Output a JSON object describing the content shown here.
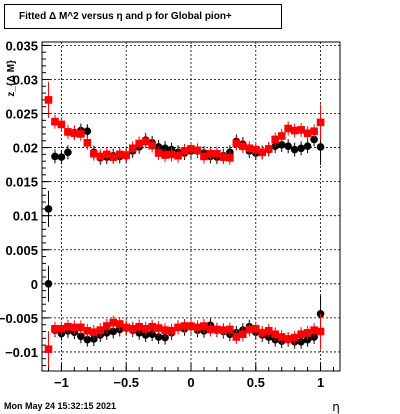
{
  "title": "Fitted Δ M^2 versus η and p for Global pion+",
  "timestamp": "Mon May 24 15:32:15 2021",
  "chart_data": {
    "type": "scatter",
    "title": "Fitted Δ M^2 versus η and p for Global pion+",
    "xlabel": "η",
    "ylabel": "z_{Δ M}",
    "xlim": [
      -1.15,
      1.15
    ],
    "ylim": [
      -0.0128,
      0.0355
    ],
    "grid": true,
    "x_ticks": [
      -1,
      -0.5,
      0,
      0.5,
      1
    ],
    "x_tick_labels": [
      "−1",
      "−0.5",
      "0",
      "0.5",
      "1"
    ],
    "y_ticks": [
      0.035,
      0.03,
      0.025,
      0.02,
      0.015,
      0.01,
      0.005,
      0,
      -0.005,
      -0.01
    ],
    "y_tick_labels": [
      "0.035",
      "0.03",
      "0.025",
      "0.02",
      "0.015",
      "0.01",
      "0.005",
      "0",
      "−0.005",
      "−0.01"
    ],
    "x": [
      -1.1,
      -1.05,
      -1.0,
      -0.95,
      -0.9,
      -0.85,
      -0.8,
      -0.75,
      -0.7,
      -0.65,
      -0.6,
      -0.55,
      -0.5,
      -0.45,
      -0.4,
      -0.35,
      -0.3,
      -0.25,
      -0.2,
      -0.15,
      -0.1,
      -0.05,
      0.0,
      0.05,
      0.1,
      0.15,
      0.2,
      0.25,
      0.3,
      0.35,
      0.4,
      0.45,
      0.5,
      0.55,
      0.6,
      0.65,
      0.7,
      0.75,
      0.8,
      0.85,
      0.9,
      0.95,
      1.0
    ],
    "series": [
      {
        "color": "#000000",
        "marker": "circle",
        "upper": [
          0.011,
          0.0187,
          0.0186,
          0.0193,
          0.0222,
          0.0225,
          0.0224,
          0.0193,
          0.0185,
          0.0186,
          0.0188,
          0.0187,
          0.0188,
          0.0195,
          0.0201,
          0.0211,
          0.0207,
          0.0201,
          0.0199,
          0.0197,
          0.0193,
          0.0192,
          0.0195,
          0.0195,
          0.0192,
          0.0187,
          0.0186,
          0.0188,
          0.0193,
          0.0209,
          0.0205,
          0.0195,
          0.0192,
          0.0193,
          0.0197,
          0.0202,
          0.0204,
          0.0202,
          0.0197,
          0.0199,
          0.0202,
          0.0212,
          0.0201
        ],
        "lower": [
          0.0,
          -0.0068,
          -0.0073,
          -0.0069,
          -0.0071,
          -0.0077,
          -0.0082,
          -0.0081,
          -0.0075,
          -0.0072,
          -0.007,
          -0.0067,
          -0.0065,
          -0.0068,
          -0.0072,
          -0.0075,
          -0.0074,
          -0.0078,
          -0.0079,
          -0.0072,
          -0.0064,
          -0.0066,
          -0.0063,
          -0.0068,
          -0.0069,
          -0.0061,
          -0.0068,
          -0.007,
          -0.0074,
          -0.0072,
          -0.0068,
          -0.0063,
          -0.0071,
          -0.0075,
          -0.0078,
          -0.0082,
          -0.0084,
          -0.0082,
          -0.0085,
          -0.0085,
          -0.0082,
          -0.0078,
          -0.0044
        ]
      },
      {
        "color": "#ff0000",
        "marker": "square",
        "upper": [
          0.027,
          0.0238,
          0.0234,
          0.0223,
          0.0221,
          0.022,
          0.0207,
          0.0191,
          0.0187,
          0.019,
          0.0186,
          0.019,
          0.0189,
          0.0199,
          0.0206,
          0.0209,
          0.0203,
          0.0192,
          0.0189,
          0.019,
          0.0188,
          0.0195,
          0.0198,
          0.0196,
          0.0187,
          0.0191,
          0.0191,
          0.0186,
          0.0185,
          0.0206,
          0.0202,
          0.0199,
          0.0197,
          0.0193,
          0.0198,
          0.0212,
          0.0217,
          0.0228,
          0.0225,
          0.0226,
          0.0221,
          0.0224,
          0.0237
        ],
        "lower": [
          -0.0096,
          -0.0066,
          -0.0066,
          -0.0063,
          -0.0064,
          -0.0064,
          -0.0069,
          -0.0071,
          -0.0068,
          -0.0062,
          -0.0057,
          -0.0059,
          -0.0064,
          -0.0066,
          -0.0063,
          -0.0066,
          -0.0063,
          -0.0065,
          -0.0068,
          -0.0069,
          -0.0064,
          -0.0062,
          -0.0062,
          -0.0064,
          -0.0062,
          -0.0067,
          -0.0067,
          -0.0068,
          -0.0067,
          -0.0078,
          -0.0074,
          -0.0067,
          -0.0066,
          -0.0072,
          -0.0069,
          -0.0074,
          -0.0078,
          -0.0081,
          -0.0079,
          -0.0074,
          -0.0072,
          -0.0068,
          -0.007
        ]
      }
    ]
  }
}
